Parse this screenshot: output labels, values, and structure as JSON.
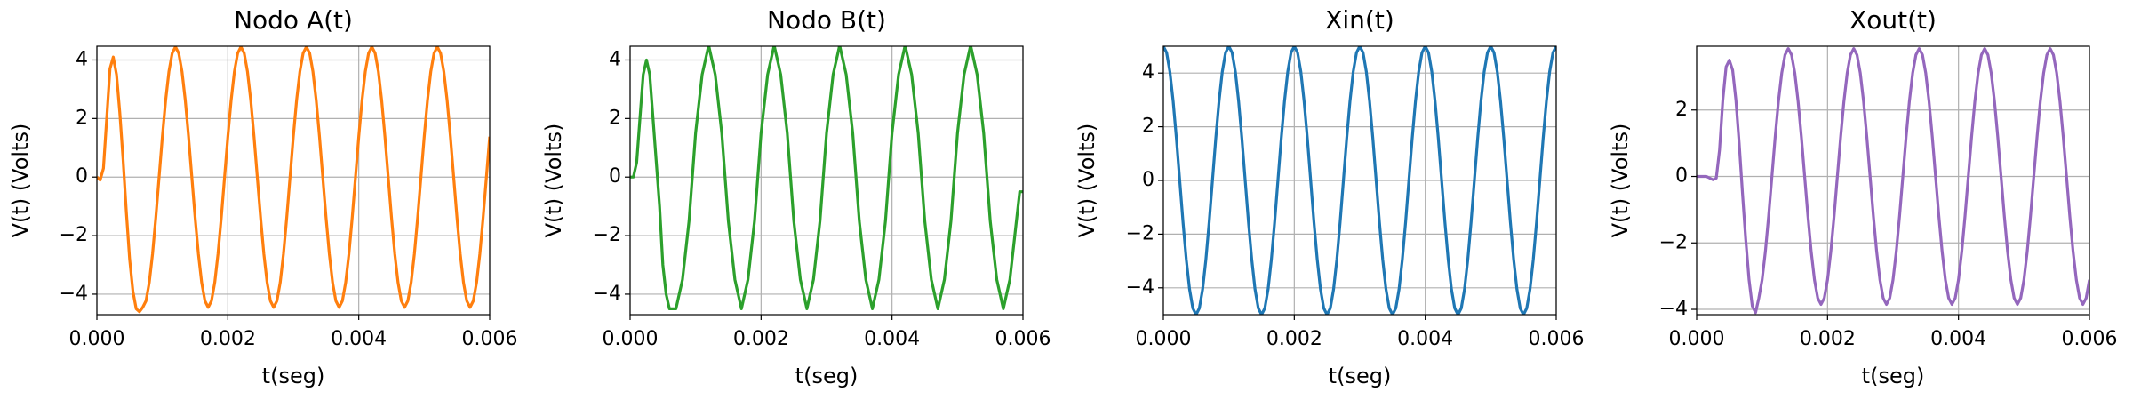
{
  "chart_data": [
    {
      "type": "line",
      "title": "Nodo A(t)",
      "xlabel": "t(seg)",
      "ylabel": "V(t) (Volts)",
      "color": "#ff7f0e",
      "grid": true,
      "xlim": [
        0,
        0.006
      ],
      "xticks": [
        {
          "value": 0,
          "label": "0.000"
        },
        {
          "value": 0.002,
          "label": "0.002"
        },
        {
          "value": 0.004,
          "label": "0.004"
        },
        {
          "value": 0.006,
          "label": "0.006"
        }
      ],
      "ylim": [
        -4.7,
        4.47
      ],
      "yticks": [
        {
          "value": -4,
          "label": "−4"
        },
        {
          "value": -2,
          "label": "−2"
        },
        0,
        2,
        4
      ],
      "x": [
        0,
        5e-05,
        0.0001,
        0.00015,
        0.0002,
        0.00025,
        0.0003,
        0.00035,
        0.0004,
        0.00045,
        0.0005,
        0.00055,
        0.0006,
        0.00065,
        0.0007,
        0.00075,
        0.0008,
        0.00085,
        0.0009,
        0.00095,
        0.001,
        0.00105,
        0.0011,
        0.00115,
        0.0012,
        0.00125,
        0.0013,
        0.00135,
        0.0014,
        0.00145,
        0.0015,
        0.00155,
        0.0016,
        0.00165,
        0.0017,
        0.00175,
        0.0018,
        0.00185,
        0.0019,
        0.00195,
        0.002,
        0.00205,
        0.0021,
        0.00215,
        0.0022,
        0.00225,
        0.0023,
        0.00235,
        0.0024,
        0.00245,
        0.0025,
        0.00255,
        0.0026,
        0.00265,
        0.0027,
        0.00275,
        0.0028,
        0.00285,
        0.0029,
        0.00295,
        0.003,
        0.00305,
        0.0031,
        0.00315,
        0.0032,
        0.00325,
        0.0033,
        0.00335,
        0.0034,
        0.00345,
        0.0035,
        0.00355,
        0.0036,
        0.00365,
        0.0037,
        0.00375,
        0.0038,
        0.00385,
        0.0039,
        0.00395,
        0.004,
        0.00405,
        0.0041,
        0.00415,
        0.0042,
        0.00425,
        0.0043,
        0.00435,
        0.0044,
        0.00445,
        0.0045,
        0.00455,
        0.0046,
        0.00465,
        0.0047,
        0.00475,
        0.0048,
        0.00485,
        0.0049,
        0.00495,
        0.005,
        0.00505,
        0.0051,
        0.00515,
        0.0052,
        0.00525,
        0.0053,
        0.00535,
        0.0054,
        0.00545,
        0.0055,
        0.00555,
        0.0056,
        0.00565,
        0.0057,
        0.00575,
        0.0058,
        0.00585,
        0.0059,
        0.00595,
        0.006
      ],
      "values": [
        0,
        -0.1,
        0.3,
        2.0,
        3.7,
        4.1,
        3.5,
        2.2,
        0.6,
        -1.2,
        -2.8,
        -3.9,
        -4.5,
        -4.6,
        -4.45,
        -4.23,
        -3.6,
        -2.62,
        -1.38,
        0,
        1.38,
        2.62,
        3.6,
        4.23,
        4.45,
        4.23,
        3.6,
        2.62,
        1.38,
        0,
        -1.38,
        -2.62,
        -3.6,
        -4.23,
        -4.45,
        -4.23,
        -3.6,
        -2.62,
        -1.38,
        0,
        1.38,
        2.62,
        3.6,
        4.23,
        4.45,
        4.23,
        3.6,
        2.62,
        1.38,
        0,
        -1.38,
        -2.62,
        -3.6,
        -4.23,
        -4.45,
        -4.23,
        -3.6,
        -2.62,
        -1.38,
        0,
        1.38,
        2.62,
        3.6,
        4.23,
        4.45,
        4.23,
        3.6,
        2.62,
        1.38,
        0,
        -1.38,
        -2.62,
        -3.6,
        -4.23,
        -4.45,
        -4.23,
        -3.6,
        -2.62,
        -1.38,
        0,
        1.38,
        2.62,
        3.6,
        4.23,
        4.45,
        4.23,
        3.6,
        2.62,
        1.38,
        0,
        -1.38,
        -2.62,
        -3.6,
        -4.23,
        -4.45,
        -4.23,
        -3.6,
        -2.62,
        -1.38,
        0,
        1.38,
        2.62,
        3.6,
        4.23,
        4.45,
        4.23,
        3.6,
        2.62,
        1.38,
        0,
        -1.38,
        -2.62,
        -3.6,
        -4.23,
        -4.45,
        -4.23,
        -3.6,
        -2.62,
        -1.38,
        0,
        1.38
      ]
    },
    {
      "type": "line",
      "title": "Nodo B(t)",
      "xlabel": "t(seg)",
      "ylabel": "V(t) (Volts)",
      "color": "#2ca02c",
      "grid": true,
      "xlim": [
        0,
        0.006
      ],
      "xticks": [
        {
          "value": 0,
          "label": "0.000"
        },
        {
          "value": 0.002,
          "label": "0.002"
        },
        {
          "value": 0.004,
          "label": "0.004"
        },
        {
          "value": 0.006,
          "label": "0.006"
        }
      ],
      "ylim": [
        -4.7,
        4.47
      ],
      "yticks": [
        {
          "value": -4,
          "label": "−4"
        },
        {
          "value": -2,
          "label": "−2"
        },
        0,
        2,
        4
      ],
      "x": [
        0,
        5e-05,
        0.0001,
        0.00015,
        0.0002,
        0.00025,
        0.0003,
        0.00035,
        0.0004,
        0.00045,
        0.0005,
        0.00055,
        0.0006,
        0.00065,
        0.0007,
        0.00075,
        0.0008,
        0.00085,
        0.0009,
        0.00095,
        0.001,
        0.00105,
        0.0011,
        0.00115,
        0.0012,
        0.00125,
        0.0013,
        0.00135,
        0.0014,
        0.00145,
        0.0015,
        0.00155,
        0.0016,
        0.00165,
        0.0017,
        0.00175,
        0.0018,
        0.00185,
        0.0019,
        0.00195,
        0.002,
        0.00205,
        0.0021,
        0.00215,
        0.0022,
        0.00225,
        0.0023,
        0.00235,
        0.0024,
        0.00245,
        0.0025,
        0.00255,
        0.0026,
        0.00265,
        0.0027,
        0.00275,
        0.0028,
        0.00285,
        0.0029,
        0.00295,
        0.003,
        0.00305,
        0.0031,
        0.00315,
        0.0032,
        0.00325,
        0.0033,
        0.00335,
        0.0034,
        0.00345,
        0.0035,
        0.00355,
        0.0036,
        0.00365,
        0.0037,
        0.00375,
        0.0038,
        0.00385,
        0.0039,
        0.00395,
        0.004,
        0.00405,
        0.0041,
        0.00415,
        0.0042,
        0.00425,
        0.0043,
        0.00435,
        0.0044,
        0.00445,
        0.0045,
        0.00455,
        0.0046,
        0.00465,
        0.0047,
        0.00475,
        0.0048,
        0.00485,
        0.0049,
        0.00495,
        0.005,
        0.00505,
        0.0051,
        0.00515,
        0.0052,
        0.00525,
        0.0053,
        0.00535,
        0.0054,
        0.00545,
        0.0055,
        0.00555,
        0.0056,
        0.00565,
        0.0057,
        0.00575,
        0.0058,
        0.00585,
        0.0059,
        0.00595,
        0.006
      ],
      "values": [
        0,
        0,
        0.5,
        2,
        3.5,
        4,
        3.5,
        2,
        0.5,
        -1,
        -3,
        -4,
        -4.5,
        -4.5,
        -4.5,
        -4,
        -3.5,
        -2.5,
        -1.5,
        0,
        1.5,
        2.5,
        3.5,
        4,
        4.5,
        4,
        3.5,
        2.5,
        1.5,
        0,
        -1.5,
        -2.5,
        -3.5,
        -4,
        -4.5,
        -4,
        -3.5,
        -2.5,
        -1.5,
        0,
        1.5,
        2.5,
        3.5,
        4,
        4.5,
        4,
        3.5,
        2.5,
        1.5,
        0,
        -1.5,
        -2.5,
        -3.5,
        -4,
        -4.5,
        -4,
        -3.5,
        -2.5,
        -1.5,
        0,
        1.5,
        2.5,
        3.5,
        4,
        4.5,
        4,
        3.5,
        2.5,
        1.5,
        0,
        -1.5,
        -2.5,
        -3.5,
        -4,
        -4.5,
        -4,
        -3.5,
        -2.5,
        -1.5,
        0,
        1.5,
        2.5,
        3.5,
        4,
        4.5,
        4,
        3.5,
        2.5,
        1.5,
        0,
        -1.5,
        -2.5,
        -3.5,
        -4,
        -4.5,
        -4,
        -3.5,
        -2.5,
        -1.5,
        0,
        1.5,
        2.5,
        3.5,
        4,
        4.5,
        4,
        3.5,
        2.5,
        1.5,
        0,
        -1.5,
        -2.5,
        -3.5,
        -4,
        -4.5,
        -4,
        -3.5,
        -2.5,
        -1.5,
        -0.5,
        -0.5
      ]
    },
    {
      "type": "line",
      "title": "Xin(t)",
      "xlabel": "t(seg)",
      "ylabel": "V(t) (Volts)",
      "color": "#1f77b4",
      "grid": true,
      "xlim": [
        0,
        0.006
      ],
      "xticks": [
        {
          "value": 0,
          "label": "0.000"
        },
        {
          "value": 0.002,
          "label": "0.002"
        },
        {
          "value": 0.004,
          "label": "0.004"
        },
        {
          "value": 0.006,
          "label": "0.006"
        }
      ],
      "ylim": [
        -5,
        5
      ],
      "yticks": [
        {
          "value": -4,
          "label": "−4"
        },
        {
          "value": -2,
          "label": "−2"
        },
        0,
        2,
        4
      ],
      "x": [
        0,
        5e-05,
        0.0001,
        0.00015,
        0.0002,
        0.00025,
        0.0003,
        0.00035,
        0.0004,
        0.00045,
        0.0005,
        0.00055,
        0.0006,
        0.00065,
        0.0007,
        0.00075,
        0.0008,
        0.00085,
        0.0009,
        0.00095,
        0.001,
        0.00105,
        0.0011,
        0.00115,
        0.0012,
        0.00125,
        0.0013,
        0.00135,
        0.0014,
        0.00145,
        0.0015,
        0.00155,
        0.0016,
        0.00165,
        0.0017,
        0.00175,
        0.0018,
        0.00185,
        0.0019,
        0.00195,
        0.002,
        0.00205,
        0.0021,
        0.00215,
        0.0022,
        0.00225,
        0.0023,
        0.00235,
        0.0024,
        0.00245,
        0.0025,
        0.00255,
        0.0026,
        0.00265,
        0.0027,
        0.00275,
        0.0028,
        0.00285,
        0.0029,
        0.00295,
        0.003,
        0.00305,
        0.0031,
        0.00315,
        0.0032,
        0.00325,
        0.0033,
        0.00335,
        0.0034,
        0.00345,
        0.0035,
        0.00355,
        0.0036,
        0.00365,
        0.0037,
        0.00375,
        0.0038,
        0.00385,
        0.0039,
        0.00395,
        0.004,
        0.00405,
        0.0041,
        0.00415,
        0.0042,
        0.00425,
        0.0043,
        0.00435,
        0.0044,
        0.00445,
        0.0045,
        0.00455,
        0.0046,
        0.00465,
        0.0047,
        0.00475,
        0.0048,
        0.00485,
        0.0049,
        0.00495,
        0.005,
        0.00505,
        0.0051,
        0.00515,
        0.0052,
        0.00525,
        0.0053,
        0.00535,
        0.0054,
        0.00545,
        0.0055,
        0.00555,
        0.0056,
        0.00565,
        0.0057,
        0.00575,
        0.0058,
        0.00585,
        0.0059,
        0.00595,
        0.006
      ],
      "values": [
        5,
        4.76,
        4.05,
        2.94,
        1.55,
        0,
        -1.55,
        -2.94,
        -4.05,
        -4.76,
        -5,
        -4.76,
        -4.05,
        -2.94,
        -1.55,
        0,
        1.55,
        2.94,
        4.05,
        4.76,
        5,
        4.76,
        4.05,
        2.94,
        1.55,
        0,
        -1.55,
        -2.94,
        -4.05,
        -4.76,
        -5,
        -4.76,
        -4.05,
        -2.94,
        -1.55,
        0,
        1.55,
        2.94,
        4.05,
        4.76,
        5,
        4.76,
        4.05,
        2.94,
        1.55,
        0,
        -1.55,
        -2.94,
        -4.05,
        -4.76,
        -5,
        -4.76,
        -4.05,
        -2.94,
        -1.55,
        0,
        1.55,
        2.94,
        4.05,
        4.76,
        5,
        4.76,
        4.05,
        2.94,
        1.55,
        0,
        -1.55,
        -2.94,
        -4.05,
        -4.76,
        -5,
        -4.76,
        -4.05,
        -2.94,
        -1.55,
        0,
        1.55,
        2.94,
        4.05,
        4.76,
        5,
        4.76,
        4.05,
        2.94,
        1.55,
        0,
        -1.55,
        -2.94,
        -4.05,
        -4.76,
        -5,
        -4.76,
        -4.05,
        -2.94,
        -1.55,
        0,
        1.55,
        2.94,
        4.05,
        4.76,
        5,
        4.76,
        4.05,
        2.94,
        1.55,
        0,
        -1.55,
        -2.94,
        -4.05,
        -4.76,
        -5,
        -4.76,
        -4.05,
        -2.94,
        -1.55,
        0,
        1.55,
        2.94,
        4.05,
        4.76,
        5
      ]
    },
    {
      "type": "line",
      "title": "Xout(t)",
      "xlabel": "t(seg)",
      "ylabel": "V(t) (Volts)",
      "color": "#9467bd",
      "grid": true,
      "xlim": [
        0,
        0.006
      ],
      "xticks": [
        {
          "value": 0,
          "label": "0.000"
        },
        {
          "value": 0.002,
          "label": "0.002"
        },
        {
          "value": 0.004,
          "label": "0.004"
        },
        {
          "value": 0.006,
          "label": "0.006"
        }
      ],
      "ylim": [
        -4.16,
        3.92
      ],
      "yticks": [
        {
          "value": -4,
          "label": "−4"
        },
        {
          "value": -2,
          "label": "−2"
        },
        0,
        2
      ],
      "x": [
        0,
        5e-05,
        0.0001,
        0.00015,
        0.0002,
        0.00025,
        0.0003,
        0.00035,
        0.0004,
        0.00045,
        0.0005,
        0.00055,
        0.0006,
        0.00065,
        0.0007,
        0.00075,
        0.0008,
        0.00085,
        0.0009,
        0.00095,
        0.001,
        0.00105,
        0.0011,
        0.00115,
        0.0012,
        0.00125,
        0.0013,
        0.00135,
        0.0014,
        0.00145,
        0.0015,
        0.00155,
        0.0016,
        0.00165,
        0.0017,
        0.00175,
        0.0018,
        0.00185,
        0.0019,
        0.00195,
        0.002,
        0.00205,
        0.0021,
        0.00215,
        0.0022,
        0.00225,
        0.0023,
        0.00235,
        0.0024,
        0.00245,
        0.0025,
        0.00255,
        0.0026,
        0.00265,
        0.0027,
        0.00275,
        0.0028,
        0.00285,
        0.0029,
        0.00295,
        0.003,
        0.00305,
        0.0031,
        0.00315,
        0.0032,
        0.00325,
        0.0033,
        0.00335,
        0.0034,
        0.00345,
        0.0035,
        0.00355,
        0.0036,
        0.00365,
        0.0037,
        0.00375,
        0.0038,
        0.00385,
        0.0039,
        0.00395,
        0.004,
        0.00405,
        0.0041,
        0.00415,
        0.0042,
        0.00425,
        0.0043,
        0.00435,
        0.0044,
        0.00445,
        0.0045,
        0.00455,
        0.0046,
        0.00465,
        0.0047,
        0.00475,
        0.0048,
        0.00485,
        0.0049,
        0.00495,
        0.005,
        0.00505,
        0.0051,
        0.00515,
        0.0052,
        0.00525,
        0.0053,
        0.00535,
        0.0054,
        0.00545,
        0.0055,
        0.00555,
        0.0056,
        0.00565,
        0.0057,
        0.00575,
        0.0058,
        0.00585,
        0.0059,
        0.00595,
        0.006
      ],
      "values": [
        0,
        0,
        0,
        0,
        -0.05,
        -0.1,
        -0.05,
        0.8,
        2.3,
        3.3,
        3.5,
        3.2,
        2.3,
        1.0,
        -0.5,
        -1.9,
        -3.1,
        -3.9,
        -4.1,
        -3.66,
        -3.11,
        -2.26,
        -1.19,
        0,
        1.19,
        2.26,
        3.11,
        3.66,
        3.85,
        3.66,
        3.11,
        2.26,
        1.19,
        0,
        -1.19,
        -2.26,
        -3.11,
        -3.66,
        -3.85,
        -3.66,
        -3.11,
        -2.26,
        -1.19,
        0,
        1.19,
        2.26,
        3.11,
        3.66,
        3.85,
        3.66,
        3.11,
        2.26,
        1.19,
        0,
        -1.19,
        -2.26,
        -3.11,
        -3.66,
        -3.85,
        -3.66,
        -3.11,
        -2.26,
        -1.19,
        0,
        1.19,
        2.26,
        3.11,
        3.66,
        3.85,
        3.66,
        3.11,
        2.26,
        1.19,
        0,
        -1.19,
        -2.26,
        -3.11,
        -3.66,
        -3.85,
        -3.66,
        -3.11,
        -2.26,
        -1.19,
        0,
        1.19,
        2.26,
        3.11,
        3.66,
        3.85,
        3.66,
        3.11,
        2.26,
        1.19,
        0,
        -1.19,
        -2.26,
        -3.11,
        -3.66,
        -3.85,
        -3.66,
        -3.11,
        -2.26,
        -1.19,
        0,
        1.19,
        2.26,
        3.11,
        3.66,
        3.85,
        3.66,
        3.11,
        2.26,
        1.19,
        0,
        -1.19,
        -2.26,
        -3.11,
        -3.66,
        -3.85,
        -3.66,
        -3.11
      ]
    }
  ]
}
